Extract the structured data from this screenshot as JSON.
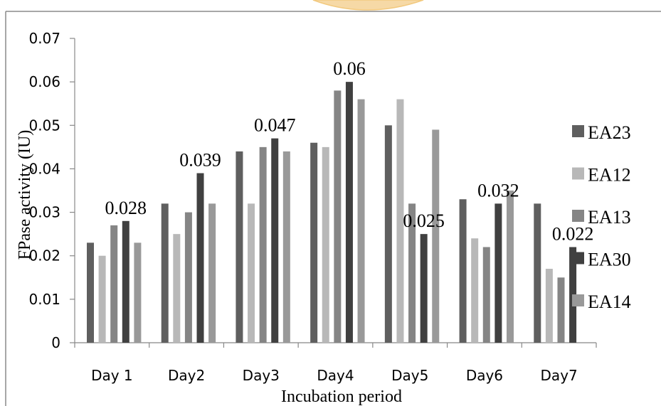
{
  "chart_data": {
    "type": "bar",
    "xlabel": "Incubation period",
    "ylabel": "FPase activity (IU)",
    "ylim": [
      0,
      0.07
    ],
    "yticks": [
      "0",
      "0.01",
      "0.02",
      "0.03",
      "0.04",
      "0.05",
      "0.06",
      "0.07"
    ],
    "grid": false,
    "legend_position": "right",
    "categories": [
      "Day 1",
      "Day2",
      "Day3",
      "Day4",
      "Day5",
      "Day6",
      "Day7"
    ],
    "series": [
      {
        "name": "EA23",
        "color": "#5f5f5f",
        "values": [
          0.023,
          0.032,
          0.044,
          0.046,
          0.05,
          0.033,
          0.032
        ]
      },
      {
        "name": "EA12",
        "color": "#b8b8b8",
        "values": [
          0.02,
          0.025,
          0.032,
          0.045,
          0.056,
          0.024,
          0.017
        ]
      },
      {
        "name": "EA13",
        "color": "#858585",
        "values": [
          0.027,
          0.03,
          0.045,
          0.058,
          0.032,
          0.022,
          0.015
        ]
      },
      {
        "name": "EA30",
        "color": "#404040",
        "values": [
          0.028,
          0.039,
          0.047,
          0.06,
          0.025,
          0.032,
          0.022
        ]
      },
      {
        "name": "EA14",
        "color": "#999999",
        "values": [
          0.023,
          0.032,
          0.044,
          0.056,
          0.049,
          0.035,
          0.0
        ]
      }
    ],
    "annotations": [
      "0.028",
      "0.039",
      "0.047",
      "0.06",
      "0.025",
      "0.032",
      "0.022"
    ]
  }
}
